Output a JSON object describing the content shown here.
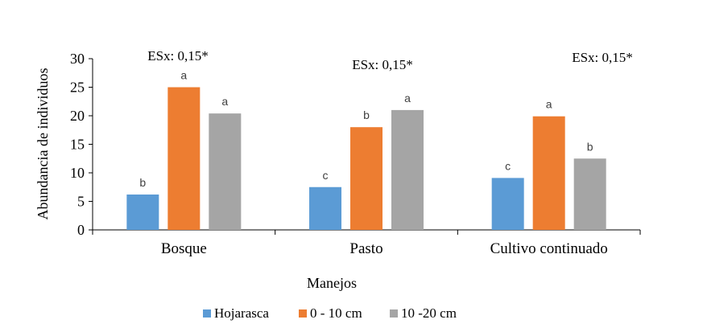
{
  "chart_data": {
    "type": "bar",
    "title": "",
    "xlabel": "Manejos",
    "ylabel": "Abundancia de individuos",
    "ylim": [
      0,
      30
    ],
    "yticks": [
      0,
      5,
      10,
      15,
      20,
      25,
      30
    ],
    "categories": [
      "Bosque",
      "Pasto",
      "Cultivo continuado"
    ],
    "series": [
      {
        "name": "Hojarasca",
        "color": "#5b9bd5",
        "values": [
          6.2,
          7.5,
          9.1
        ],
        "letters": [
          "b",
          "c",
          "c"
        ]
      },
      {
        "name": "0 - 10 cm",
        "color": "#ed7d31",
        "values": [
          25.0,
          18.0,
          19.9
        ],
        "letters": [
          "a",
          "b",
          "a"
        ]
      },
      {
        "name": "10 -20 cm",
        "color": "#a5a5a5",
        "values": [
          20.4,
          21.0,
          12.5
        ],
        "letters": [
          "a",
          "a",
          "b"
        ]
      }
    ],
    "annotations": [
      "ESx: 0,15*",
      "ESx: 0,15*",
      "ESx: 0,15*"
    ],
    "grid": false,
    "legend_position": "bottom"
  }
}
